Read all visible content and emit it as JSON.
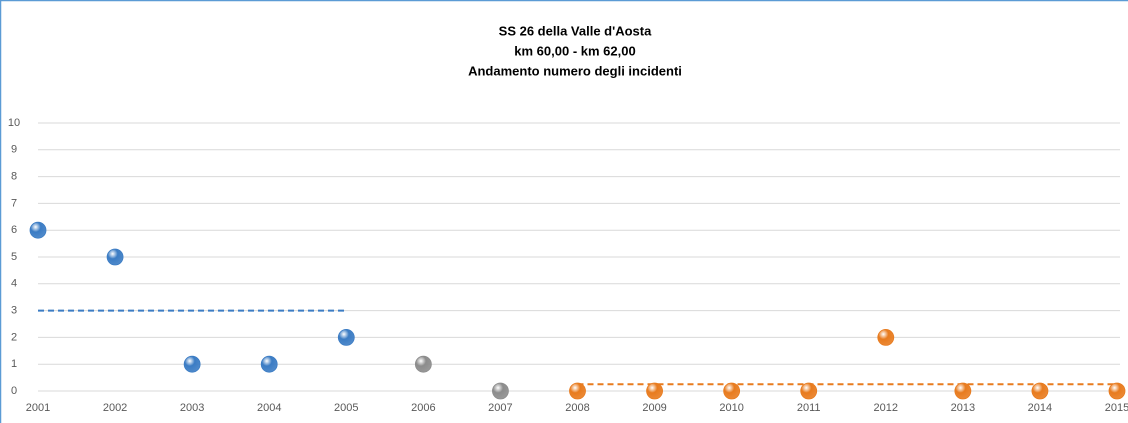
{
  "chart_data": {
    "type": "scatter",
    "title_lines": [
      "SS 26 della Valle d'Aosta",
      "km 60,00 - km 62,00",
      "Andamento numero degli incidenti"
    ],
    "series": [
      {
        "color": "#3b7cc4",
        "x": [
          2001,
          2002,
          2003,
          2004,
          2005
        ],
        "values": [
          6,
          5,
          1,
          1,
          2
        ]
      },
      {
        "color": "#8c8c8c",
        "x": [
          2006,
          2007
        ],
        "values": [
          1,
          0
        ]
      },
      {
        "color": "#e87b1e",
        "x": [
          2008,
          2009,
          2010,
          2011,
          2012,
          2013,
          2014,
          2015
        ],
        "values": [
          0,
          0,
          0,
          0,
          2,
          0,
          0,
          0
        ]
      }
    ],
    "averages": [
      {
        "color": "#3b7cc4",
        "value": 3,
        "from": 2001,
        "to": 2005
      },
      {
        "color": "#e87b1e",
        "value": 0.25,
        "from": 2008,
        "to": 2015
      }
    ],
    "xlim": [
      2001,
      2015
    ],
    "xticks": [
      2001,
      2002,
      2003,
      2004,
      2005,
      2006,
      2007,
      2008,
      2009,
      2010,
      2011,
      2012,
      2013,
      2014,
      2015
    ],
    "ylim": [
      0,
      10
    ],
    "yticks": [
      0,
      1,
      2,
      3,
      4,
      5,
      6,
      7,
      8,
      9,
      10
    ],
    "grid": true
  }
}
